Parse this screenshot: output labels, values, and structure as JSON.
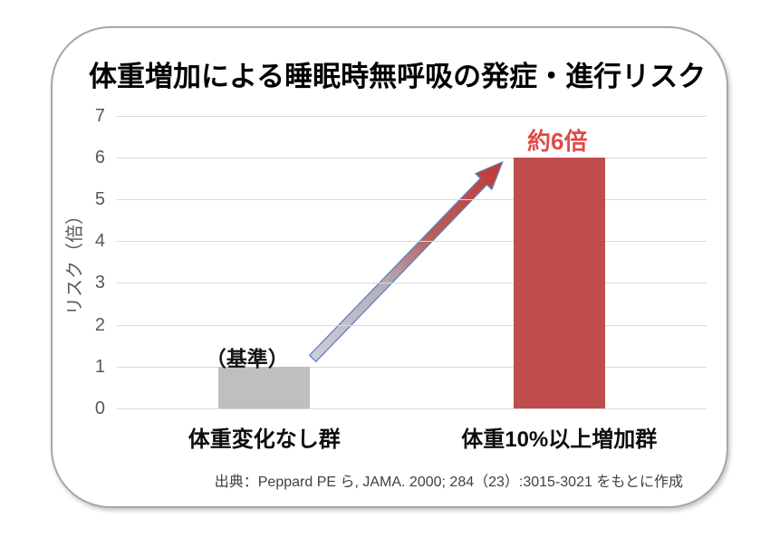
{
  "title": "体重増加による睡眠時無呼吸の発症・進行リスク",
  "chart_data": {
    "type": "bar",
    "title": "体重増加による睡眠時無呼吸の発症・進行リスク",
    "categories": [
      "体重変化なし群",
      "体重10%以上増加群"
    ],
    "values": [
      1,
      6
    ],
    "bar_labels": [
      "（基準）",
      "約6倍"
    ],
    "colors": [
      "#bfbfbf",
      "#bf4d4d"
    ],
    "label_colors": [
      "#141414",
      "#de4b48"
    ],
    "xlabel": "",
    "ylabel": "リスク（倍）",
    "ylim": [
      0,
      7
    ],
    "yticks": [
      0,
      1,
      2,
      3,
      4,
      5,
      6,
      7
    ],
    "grid": true,
    "legend": false,
    "annotation_arrow": {
      "from_index": 0,
      "to_index": 1,
      "style": "silver-to-red gradient diagonal arrow from top of baseline bar to top of risk bar"
    }
  },
  "source": "出典：Peppard PE ら, JAMA. 2000; 284（23）:3015-3021 をもとに作成",
  "colors": {
    "background": "#ffffff",
    "card_border": "#a6a6a6",
    "grid_line": "#d9d9d9",
    "axis_text": "#595959",
    "title_text": "#000000",
    "category_text": "#0d0d0d",
    "source_text": "#404040",
    "arrow_tail": "#ccced6",
    "arrow_head": "#c13835",
    "arrow_outline": "#5b83c0"
  }
}
